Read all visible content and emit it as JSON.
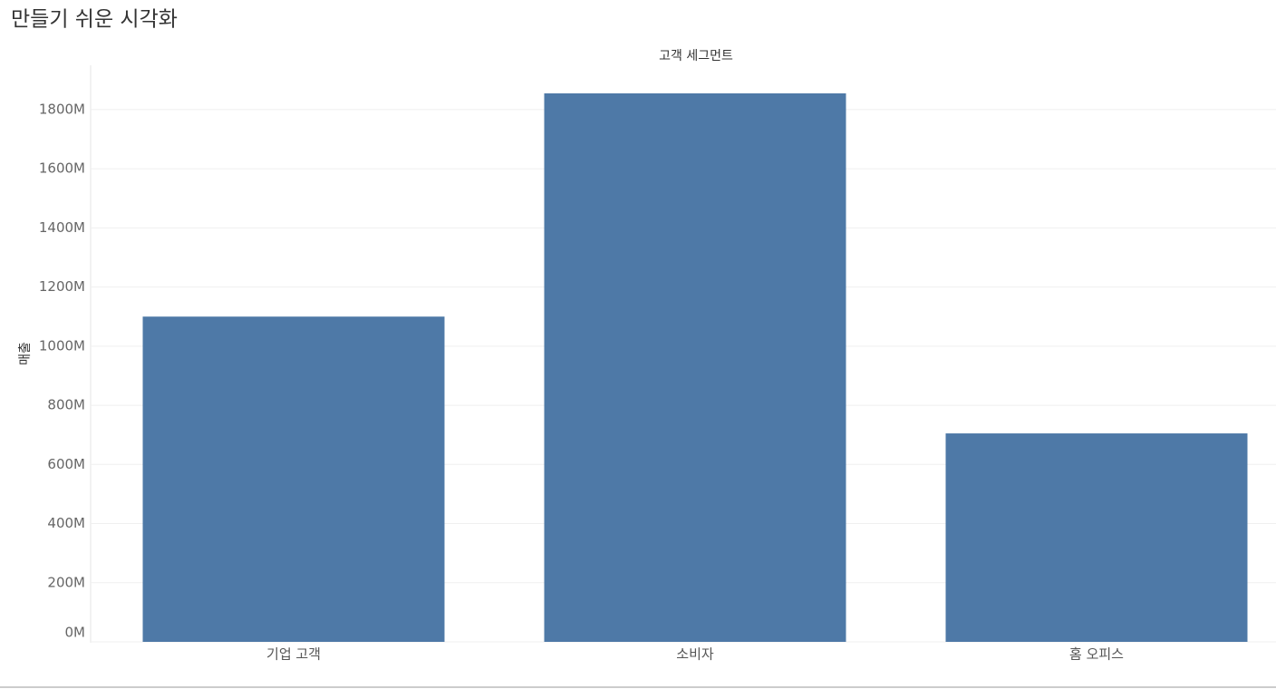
{
  "chart_data": {
    "type": "bar",
    "title": "만들기 쉬운 시각화",
    "column_header": "고객 세그먼트",
    "y_label": "매출",
    "categories": [
      "기업 고객",
      "소비자",
      "홈 오피스"
    ],
    "values": [
      1100000000,
      1855000000,
      705000000
    ],
    "color": "#4e79a7",
    "ylim": [
      0,
      1950000000
    ],
    "yticks": [
      {
        "value": 0,
        "label": "0M"
      },
      {
        "value": 200000000,
        "label": "200M"
      },
      {
        "value": 400000000,
        "label": "400M"
      },
      {
        "value": 600000000,
        "label": "600M"
      },
      {
        "value": 800000000,
        "label": "800M"
      },
      {
        "value": 1000000000,
        "label": "1000M"
      },
      {
        "value": 1200000000,
        "label": "1200M"
      },
      {
        "value": 1400000000,
        "label": "1400M"
      },
      {
        "value": 1600000000,
        "label": "1600M"
      },
      {
        "value": 1800000000,
        "label": "1800M"
      }
    ],
    "grid": true
  }
}
